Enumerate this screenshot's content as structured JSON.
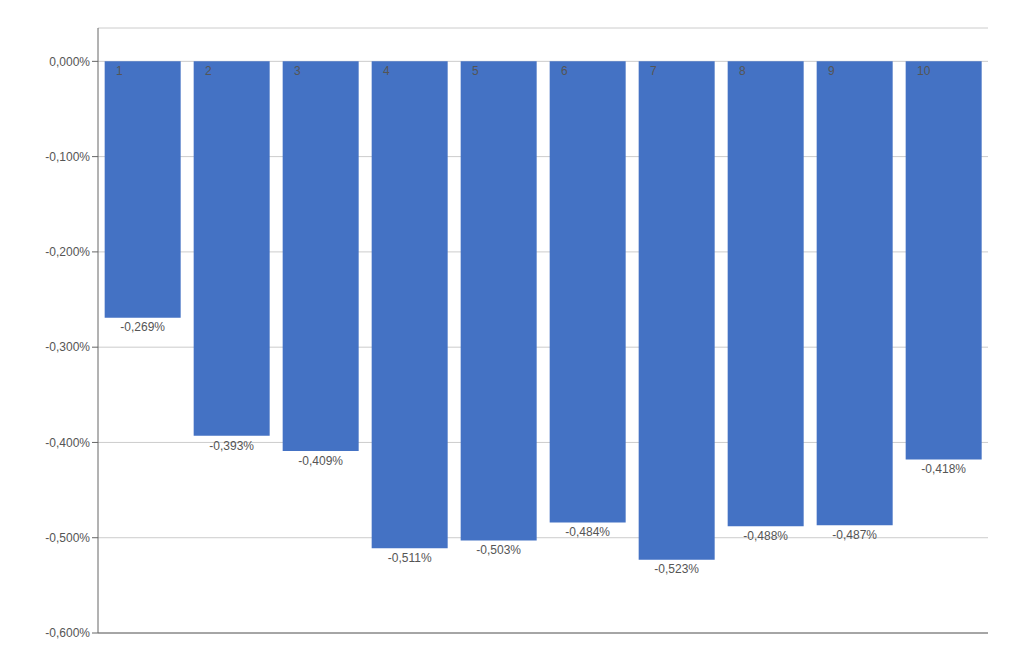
{
  "chart_data": {
    "type": "bar",
    "categories": [
      "1",
      "2",
      "3",
      "4",
      "5",
      "6",
      "7",
      "8",
      "9",
      "10"
    ],
    "values": [
      -0.00269,
      -0.00393,
      -0.00409,
      -0.00511,
      -0.00503,
      -0.00484,
      -0.00523,
      -0.00488,
      -0.00487,
      -0.00418
    ],
    "value_labels": [
      "-0,269%",
      "-0,393%",
      "-0,409%",
      "-0,511%",
      "-0,503%",
      "-0,484%",
      "-0,523%",
      "-0,488%",
      "-0,487%",
      "-0,418%"
    ],
    "color": "#4472C4",
    "ylim": [
      -0.006,
      0.00035
    ],
    "yticks": [
      {
        "value": 0.0,
        "label": "0,000%"
      },
      {
        "value": -0.001,
        "label": "-0,100%"
      },
      {
        "value": -0.002,
        "label": "-0,200%"
      },
      {
        "value": -0.003,
        "label": "-0,300%"
      },
      {
        "value": -0.004,
        "label": "-0,400%"
      },
      {
        "value": -0.005,
        "label": "-0,500%"
      },
      {
        "value": -0.006,
        "label": "-0,600%"
      }
    ],
    "grid": true,
    "data_labels": true,
    "tick_labels": "y"
  }
}
